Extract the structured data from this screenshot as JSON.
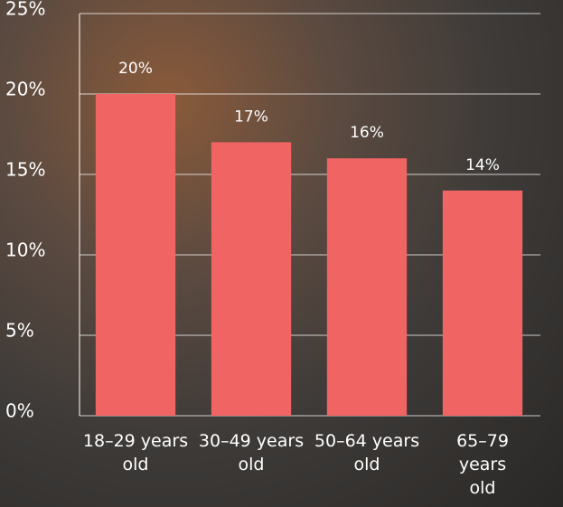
{
  "chart_data": {
    "type": "bar",
    "categories": [
      "18–29 years old",
      "30–49 years old",
      "50–64 years old",
      "65–79 years old"
    ],
    "values": [
      20,
      17,
      16,
      14
    ],
    "value_labels": [
      "20%",
      "17%",
      "16%",
      "14%"
    ],
    "color": "#f06464",
    "ylim": [
      0,
      25
    ],
    "yticks": [
      {
        "value": 0,
        "label": "0%"
      },
      {
        "value": 5,
        "label": "5%"
      },
      {
        "value": 10,
        "label": "10%"
      },
      {
        "value": 15,
        "label": "15%"
      },
      {
        "value": 20,
        "label": "20%"
      },
      {
        "value": 25,
        "label": "25%"
      }
    ],
    "grid": true
  }
}
